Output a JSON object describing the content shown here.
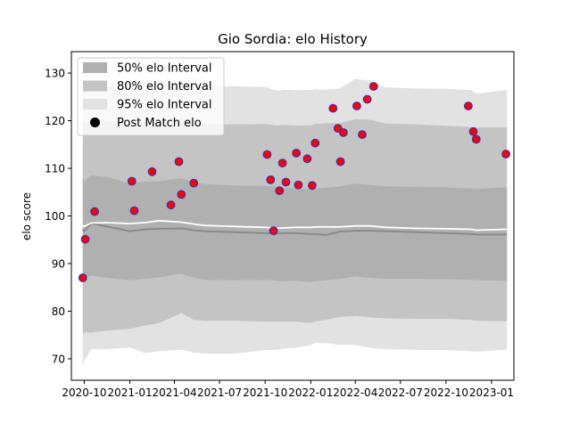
{
  "chart_data": {
    "type": "scatter",
    "title": "Gio Sordia: elo History",
    "xlabel": "",
    "ylabel": "elo score",
    "x_range": [
      "2020-09-05",
      "2023-02-15"
    ],
    "ylim": [
      65.5,
      134.5
    ],
    "y_ticks": [
      70,
      80,
      90,
      100,
      110,
      120,
      130
    ],
    "x_ticks": [
      {
        "date": "2020-10-01",
        "label": "2020-10"
      },
      {
        "date": "2021-01-01",
        "label": "2021-01"
      },
      {
        "date": "2021-04-01",
        "label": "2021-04"
      },
      {
        "date": "2021-07-01",
        "label": "2021-07"
      },
      {
        "date": "2021-10-01",
        "label": "2021-10"
      },
      {
        "date": "2022-01-01",
        "label": "2022-01"
      },
      {
        "date": "2022-04-01",
        "label": "2022-04"
      },
      {
        "date": "2022-07-01",
        "label": "2022-07"
      },
      {
        "date": "2022-10-01",
        "label": "2022-10"
      },
      {
        "date": "2023-01-01",
        "label": "2023-01"
      }
    ],
    "grid": false,
    "legend_position": "top-left",
    "legend": [
      {
        "label": "50% elo Interval",
        "kind": "band",
        "color": "#b0b0b0"
      },
      {
        "label": "80% elo Interval",
        "kind": "band",
        "color": "#c4c4c4"
      },
      {
        "label": "95% elo Interval",
        "kind": "band",
        "color": "#e2e2e2"
      },
      {
        "label": "Post Match elo",
        "kind": "marker",
        "color": "#000000"
      }
    ],
    "colors": {
      "band_95": "#e2e2e2",
      "band_80": "#c4c4c4",
      "band_50": "#b0b0b0",
      "median_line": "#888888",
      "mean_line": "#ffffff",
      "marker_fill": "#ff0000",
      "marker_edge": "#3a2fb0"
    },
    "bands": {
      "dates": [
        "2020-09-28",
        "2020-10-01",
        "2020-10-15",
        "2020-11-15",
        "2021-01-01",
        "2021-02-01",
        "2021-03-01",
        "2021-04-15",
        "2021-05-10",
        "2021-06-01",
        "2021-08-01",
        "2021-10-01",
        "2021-10-25",
        "2021-11-10",
        "2021-12-01",
        "2022-01-01",
        "2022-01-10",
        "2022-02-01",
        "2022-03-01",
        "2022-04-01",
        "2022-05-01",
        "2022-06-01",
        "2022-08-01",
        "2022-10-01",
        "2022-11-20",
        "2022-12-01",
        "2023-02-01"
      ],
      "upper_95": [
        127.5,
        127.0,
        128.5,
        128.2,
        127.5,
        128.3,
        128.6,
        128.1,
        127.6,
        127.2,
        127.2,
        127.1,
        126.3,
        126.5,
        126.4,
        126.4,
        126.6,
        126.5,
        126.8,
        128.8,
        128.4,
        127.0,
        126.8,
        126.7,
        126.4,
        125.7,
        126.5
      ],
      "upper_80": [
        120.5,
        119.5,
        120.2,
        120.0,
        119.4,
        119.6,
        119.7,
        120.5,
        119.6,
        119.3,
        119.2,
        119.3,
        119.0,
        119.1,
        119.0,
        119.0,
        119.3,
        119.5,
        119.5,
        120.3,
        120.2,
        119.4,
        119.2,
        118.9,
        118.7,
        118.6,
        118.6
      ],
      "upper_50": [
        108.0,
        107.3,
        108.5,
        108.2,
        106.8,
        107.2,
        107.3,
        107.9,
        107.1,
        106.7,
        106.4,
        106.3,
        106.1,
        105.9,
        105.8,
        105.6,
        105.8,
        105.9,
        106.2,
        106.8,
        106.5,
        106.2,
        106.1,
        106.0,
        105.8,
        105.7,
        106.0
      ],
      "lower_50": [
        87.3,
        86.8,
        87.5,
        87.0,
        86.5,
        86.8,
        87.1,
        87.9,
        87.0,
        86.6,
        86.5,
        86.6,
        86.4,
        86.3,
        86.4,
        86.1,
        86.3,
        86.5,
        86.8,
        87.3,
        87.0,
        86.8,
        86.8,
        86.7,
        86.6,
        86.5,
        86.4
      ],
      "lower_80": [
        75.0,
        75.6,
        75.5,
        75.9,
        76.3,
        77.0,
        77.5,
        79.6,
        78.2,
        78.0,
        78.0,
        77.8,
        77.8,
        77.8,
        77.8,
        77.5,
        77.8,
        78.2,
        78.8,
        79.0,
        78.7,
        78.5,
        78.4,
        78.4,
        78.2,
        78.0,
        77.9
      ],
      "lower_95": [
        68.5,
        69.5,
        72.0,
        72.0,
        72.4,
        71.2,
        71.6,
        71.9,
        71.3,
        71.1,
        71.1,
        71.8,
        71.9,
        72.2,
        72.3,
        72.9,
        73.3,
        73.3,
        72.9,
        72.9,
        72.3,
        72.0,
        71.9,
        71.8,
        71.6,
        71.5,
        71.9
      ],
      "median": [
        97.2,
        96.8,
        98.4,
        97.8,
        96.8,
        97.2,
        97.3,
        97.4,
        97.0,
        96.8,
        96.6,
        96.4,
        96.3,
        96.4,
        96.4,
        96.2,
        96.2,
        96.0,
        96.7,
        96.9,
        96.9,
        96.8,
        96.6,
        96.4,
        96.2,
        96.1,
        96.1
      ],
      "mean": [
        98.0,
        97.8,
        98.5,
        98.6,
        98.4,
        98.6,
        99.0,
        98.7,
        98.3,
        98.0,
        97.8,
        97.6,
        97.4,
        97.5,
        97.6,
        97.6,
        97.7,
        97.7,
        97.7,
        97.9,
        97.9,
        97.6,
        97.4,
        97.3,
        97.2,
        97.0,
        97.2
      ]
    },
    "points": [
      {
        "x": "2020-09-28",
        "y": 87.0
      },
      {
        "x": "2020-10-03",
        "y": 95.1
      },
      {
        "x": "2020-10-22",
        "y": 100.9
      },
      {
        "x": "2021-01-05",
        "y": 107.3
      },
      {
        "x": "2021-01-10",
        "y": 101.1
      },
      {
        "x": "2021-02-15",
        "y": 109.3
      },
      {
        "x": "2021-03-25",
        "y": 102.3
      },
      {
        "x": "2021-04-10",
        "y": 111.4
      },
      {
        "x": "2021-04-15",
        "y": 104.5
      },
      {
        "x": "2021-05-10",
        "y": 106.9
      },
      {
        "x": "2021-10-05",
        "y": 112.9
      },
      {
        "x": "2021-10-12",
        "y": 107.6
      },
      {
        "x": "2021-10-18",
        "y": 96.9
      },
      {
        "x": "2021-10-30",
        "y": 105.3
      },
      {
        "x": "2021-11-05",
        "y": 111.1
      },
      {
        "x": "2021-11-12",
        "y": 107.1
      },
      {
        "x": "2021-12-03",
        "y": 113.2
      },
      {
        "x": "2021-12-07",
        "y": 106.5
      },
      {
        "x": "2021-12-25",
        "y": 112.0
      },
      {
        "x": "2022-01-04",
        "y": 106.4
      },
      {
        "x": "2022-01-10",
        "y": 115.3
      },
      {
        "x": "2022-02-15",
        "y": 122.6
      },
      {
        "x": "2022-02-25",
        "y": 118.4
      },
      {
        "x": "2022-03-02",
        "y": 111.4
      },
      {
        "x": "2022-03-08",
        "y": 117.5
      },
      {
        "x": "2022-04-04",
        "y": 123.1
      },
      {
        "x": "2022-04-15",
        "y": 117.1
      },
      {
        "x": "2022-04-25",
        "y": 124.5
      },
      {
        "x": "2022-05-08",
        "y": 127.2
      },
      {
        "x": "2022-11-15",
        "y": 123.1
      },
      {
        "x": "2022-11-25",
        "y": 117.7
      },
      {
        "x": "2022-12-01",
        "y": 116.1
      },
      {
        "x": "2023-01-30",
        "y": 113.0
      }
    ]
  }
}
